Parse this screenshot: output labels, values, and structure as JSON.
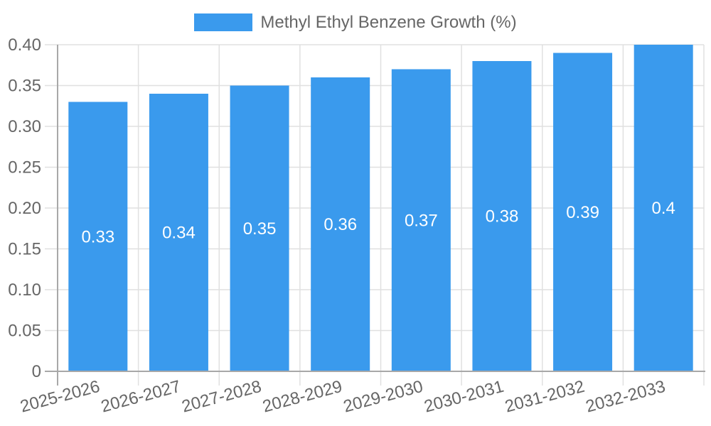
{
  "chart_data": {
    "type": "bar",
    "title": "",
    "legend": {
      "label": "Methyl Ethyl Benzene Growth (%)",
      "position": "top"
    },
    "categories": [
      "2025-2026",
      "2026-2027",
      "2027-2028",
      "2028-2029",
      "2029-2030",
      "2030-2031",
      "2031-2032",
      "2032-2033"
    ],
    "series": [
      {
        "name": "Methyl Ethyl Benzene Growth (%)",
        "values": [
          0.33,
          0.34,
          0.35,
          0.36,
          0.37,
          0.38,
          0.39,
          0.4
        ],
        "value_labels": [
          "0.33",
          "0.34",
          "0.35",
          "0.36",
          "0.37",
          "0.38",
          "0.39",
          "0.4"
        ]
      }
    ],
    "xlabel": "",
    "ylabel": "",
    "ylim": [
      0,
      0.4
    ],
    "ytick_step": 0.05,
    "ytick_labels": [
      "0",
      "0.05",
      "0.10",
      "0.15",
      "0.20",
      "0.25",
      "0.30",
      "0.35",
      "0.40"
    ],
    "grid": true,
    "colors": {
      "bar": "#3A9AED",
      "axis_line": "#A8A8A8",
      "grid_line": "#E0E0E0",
      "tick_label": "#666666",
      "value_label": "#FFFFFF",
      "legend_text": "#666666"
    }
  }
}
